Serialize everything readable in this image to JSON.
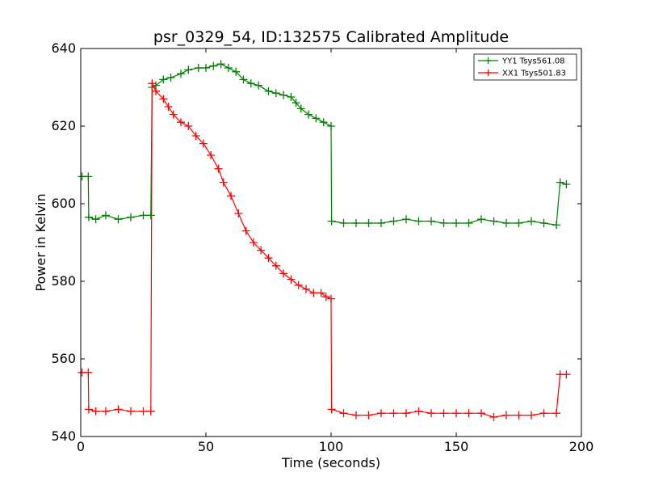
{
  "chart_data": {
    "type": "line",
    "title": "psr_0329_54, ID:132575 Calibrated Amplitude",
    "xlabel": "Time (seconds)",
    "ylabel": "Power in Kelvin",
    "xlim": [
      0,
      200
    ],
    "ylim": [
      540,
      640
    ],
    "xticks": [
      0,
      50,
      100,
      150,
      200
    ],
    "yticks": [
      540,
      560,
      580,
      600,
      620,
      640
    ],
    "grid": false,
    "legend_position": "top-right",
    "marker": "+",
    "series": [
      {
        "name": "YY1 Tsys561.08",
        "color": "#008000",
        "points": [
          [
            0.5,
            607
          ],
          [
            3,
            607
          ],
          [
            3.2,
            596.5
          ],
          [
            6,
            596
          ],
          [
            10,
            597
          ],
          [
            15,
            596
          ],
          [
            20,
            596.5
          ],
          [
            25,
            597
          ],
          [
            28,
            597
          ],
          [
            28.5,
            630
          ],
          [
            30,
            630.5
          ],
          [
            33,
            632
          ],
          [
            36,
            632.5
          ],
          [
            40,
            633.5
          ],
          [
            43,
            634.5
          ],
          [
            47,
            635
          ],
          [
            50,
            635
          ],
          [
            53,
            635.5
          ],
          [
            56,
            636
          ],
          [
            59,
            635
          ],
          [
            62,
            634
          ],
          [
            65,
            632
          ],
          [
            68,
            631
          ],
          [
            71,
            630.5
          ],
          [
            75,
            629
          ],
          [
            78,
            628.5
          ],
          [
            81,
            628
          ],
          [
            84,
            627.5
          ],
          [
            86,
            626
          ],
          [
            88,
            624.5
          ],
          [
            91,
            623
          ],
          [
            94,
            622
          ],
          [
            97,
            621
          ],
          [
            100,
            620
          ],
          [
            100.2,
            595.5
          ],
          [
            105,
            595
          ],
          [
            110,
            595
          ],
          [
            115,
            595
          ],
          [
            120,
            595
          ],
          [
            125,
            595.5
          ],
          [
            130,
            596
          ],
          [
            135,
            595.5
          ],
          [
            140,
            595.5
          ],
          [
            145,
            595
          ],
          [
            150,
            595
          ],
          [
            155,
            595
          ],
          [
            160,
            596
          ],
          [
            165,
            595.5
          ],
          [
            170,
            595
          ],
          [
            175,
            595
          ],
          [
            180,
            595.5
          ],
          [
            185,
            595
          ],
          [
            190,
            594.5
          ],
          [
            191.5,
            605.5
          ],
          [
            194,
            605
          ]
        ]
      },
      {
        "name": "XX1 Tsys501.83",
        "color": "#ff0000",
        "points": [
          [
            0.5,
            556.5
          ],
          [
            3,
            556.5
          ],
          [
            3.2,
            547
          ],
          [
            6,
            546.5
          ],
          [
            10,
            546.5
          ],
          [
            15,
            547
          ],
          [
            20,
            546.5
          ],
          [
            25,
            546.5
          ],
          [
            28,
            546.5
          ],
          [
            28.5,
            631
          ],
          [
            30,
            629
          ],
          [
            33,
            627
          ],
          [
            35,
            625
          ],
          [
            37,
            623
          ],
          [
            40,
            621
          ],
          [
            43,
            620
          ],
          [
            46,
            617.5
          ],
          [
            49,
            615.5
          ],
          [
            52,
            612.5
          ],
          [
            55,
            609
          ],
          [
            57,
            605.5
          ],
          [
            60,
            602
          ],
          [
            63,
            597.5
          ],
          [
            66,
            593
          ],
          [
            69,
            590
          ],
          [
            72,
            588
          ],
          [
            75,
            586
          ],
          [
            78,
            584
          ],
          [
            81,
            582
          ],
          [
            84,
            580.5
          ],
          [
            87,
            579
          ],
          [
            90,
            578
          ],
          [
            93,
            577
          ],
          [
            96,
            577
          ],
          [
            98,
            576
          ],
          [
            100,
            575.5
          ],
          [
            100.2,
            547
          ],
          [
            105,
            546
          ],
          [
            110,
            545.5
          ],
          [
            115,
            545.5
          ],
          [
            120,
            546
          ],
          [
            125,
            546
          ],
          [
            130,
            546
          ],
          [
            135,
            546.5
          ],
          [
            140,
            546
          ],
          [
            145,
            546
          ],
          [
            150,
            546
          ],
          [
            155,
            546
          ],
          [
            160,
            546
          ],
          [
            165,
            545
          ],
          [
            170,
            545.5
          ],
          [
            175,
            545.5
          ],
          [
            180,
            545.5
          ],
          [
            185,
            546
          ],
          [
            190,
            546
          ],
          [
            191.5,
            556
          ],
          [
            194,
            556
          ]
        ]
      }
    ]
  }
}
